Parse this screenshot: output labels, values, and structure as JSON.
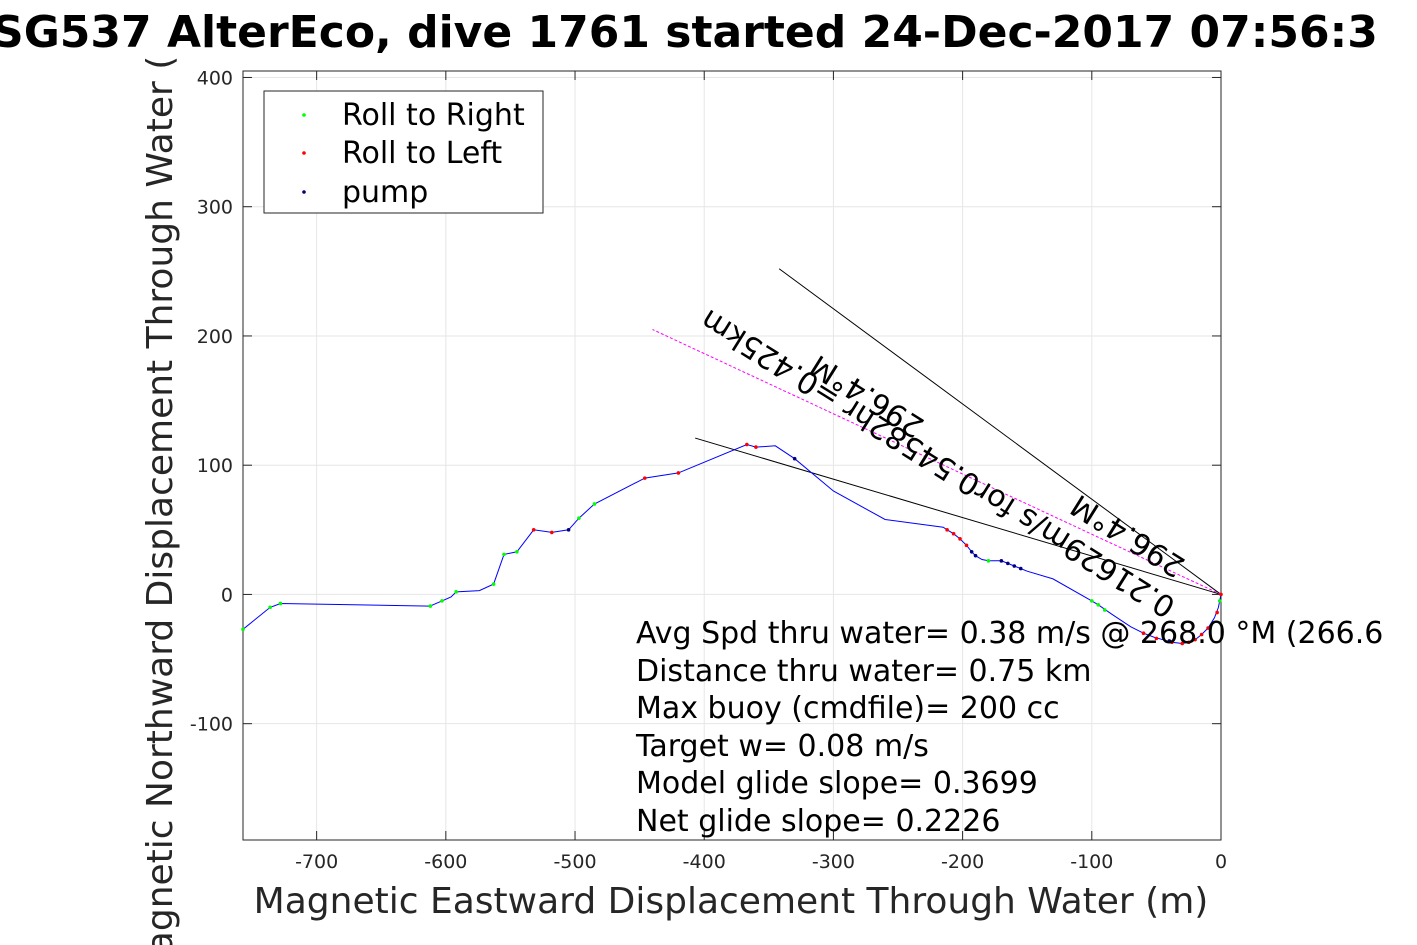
{
  "chart_data": {
    "type": "line",
    "title": "SG537 AlterEco, dive 1761 started 24-Dec-2017 07:56:3",
    "xlabel": "Magnetic Eastward Displacement Through Water (m)",
    "ylabel": "Magnetic Northward Displacement Through Water (",
    "xlim": [
      -757,
      0
    ],
    "ylim": [
      -190,
      405
    ],
    "grid": true,
    "x_ticks": [
      -700,
      -600,
      -500,
      -400,
      -300,
      -200,
      -100,
      0
    ],
    "x_tick_labels": [
      "-700",
      "-600",
      "-500",
      "-400",
      "-300",
      "-200",
      "-100",
      "0"
    ],
    "y_ticks": [
      -100,
      0,
      100,
      200,
      300,
      400
    ],
    "y_tick_labels": [
      "-100",
      "0",
      "100",
      "200",
      "300",
      "400"
    ],
    "legend": {
      "position": "top-left",
      "items": [
        {
          "label": "Roll to Right",
          "color": "#00ff00"
        },
        {
          "label": "Roll to Left",
          "color": "#ff0000"
        },
        {
          "label": "pump",
          "color": "#000080"
        }
      ]
    },
    "track": {
      "color": "#0000ff",
      "points": [
        [
          0,
          0
        ],
        [
          -1,
          -5
        ],
        [
          -2,
          -10
        ],
        [
          -5,
          -18
        ],
        [
          -10,
          -26
        ],
        [
          -15,
          -31
        ],
        [
          -20,
          -35
        ],
        [
          -25,
          -37
        ],
        [
          -30,
          -38
        ],
        [
          -38,
          -37
        ],
        [
          -45,
          -35
        ],
        [
          -52,
          -33
        ],
        [
          -60,
          -30
        ],
        [
          -70,
          -25
        ],
        [
          -85,
          -15
        ],
        [
          -95,
          -8
        ],
        [
          -100,
          -5
        ],
        [
          -130,
          12
        ],
        [
          -150,
          18
        ],
        [
          -160,
          22
        ],
        [
          -170,
          26
        ],
        [
          -180,
          26
        ],
        [
          -185,
          27
        ],
        [
          -190,
          30
        ],
        [
          -193,
          33
        ],
        [
          -197,
          38
        ],
        [
          -202,
          43
        ],
        [
          -207,
          47
        ],
        [
          -212,
          50
        ],
        [
          -215,
          52
        ],
        [
          -260,
          58
        ],
        [
          -300,
          80
        ],
        [
          -330,
          105
        ],
        [
          -345,
          115
        ],
        [
          -360,
          114
        ],
        [
          -367,
          116
        ],
        [
          -420,
          94
        ],
        [
          -446,
          90
        ],
        [
          -485,
          70
        ],
        [
          -497,
          59
        ],
        [
          -505,
          50
        ],
        [
          -518,
          48
        ],
        [
          -532,
          50
        ],
        [
          -545,
          33
        ],
        [
          -555,
          31
        ],
        [
          -563,
          8
        ],
        [
          -574,
          3
        ],
        [
          -592,
          2
        ],
        [
          -596,
          -2
        ],
        [
          -603,
          -5
        ],
        [
          -610,
          -8
        ],
        [
          -612,
          -9
        ],
        [
          -728,
          -7
        ],
        [
          -736,
          -10
        ],
        [
          -757,
          -27
        ]
      ]
    },
    "roll_right_points": [
      [
        -1,
        -5
      ],
      [
        -757,
        -27
      ],
      [
        -736,
        -10
      ],
      [
        -728,
        -7
      ],
      [
        -612,
        -9
      ],
      [
        -603,
        -5
      ],
      [
        -592,
        2
      ],
      [
        -563,
        8
      ],
      [
        -555,
        31
      ],
      [
        -545,
        33
      ],
      [
        -497,
        59
      ],
      [
        -485,
        70
      ],
      [
        -100,
        -5
      ],
      [
        -95,
        -8
      ],
      [
        -90,
        -12
      ],
      [
        -180,
        26
      ]
    ],
    "roll_left_points": [
      [
        0,
        0
      ],
      [
        -3,
        -14
      ],
      [
        -10,
        -26
      ],
      [
        -15,
        -31
      ],
      [
        -20,
        -35
      ],
      [
        -25,
        -37
      ],
      [
        -30,
        -38
      ],
      [
        -38,
        -37
      ],
      [
        -50,
        -34
      ],
      [
        -60,
        -30
      ],
      [
        -197,
        38
      ],
      [
        -202,
        43
      ],
      [
        -207,
        47
      ],
      [
        -212,
        50
      ],
      [
        -360,
        114
      ],
      [
        -367,
        116
      ],
      [
        -420,
        94
      ],
      [
        -446,
        90
      ],
      [
        -532,
        50
      ],
      [
        -518,
        48
      ]
    ],
    "pump_points": [
      [
        -40,
        -36
      ],
      [
        -170,
        26
      ],
      [
        -165,
        24
      ],
      [
        -160,
        22
      ],
      [
        -155,
        20
      ],
      [
        -190,
        30
      ],
      [
        -193,
        33
      ],
      [
        -505,
        50
      ],
      [
        -330,
        105
      ]
    ],
    "heading_lines": [
      {
        "from": [
          0,
          0
        ],
        "to": [
          -342,
          252
        ],
        "color": "#000000"
      },
      {
        "from": [
          0,
          0
        ],
        "to": [
          -407,
          121
        ],
        "color": "#000000"
      }
    ],
    "current_segment": {
      "from": [
        0,
        0
      ],
      "to": [
        -440,
        205
      ],
      "color": "#ff00ff"
    },
    "rotated_labels": [
      {
        "text": "0.21629m/s for0.54582hr =0.425km",
        "anchor": [
          -215,
          108
        ],
        "angle_deg": 212
      },
      {
        "text": "296.4°M",
        "anchor": [
          -270,
          160
        ],
        "angle_deg": 212
      },
      {
        "text": "296.4°M",
        "anchor": [
          -68,
          52
        ],
        "angle_deg": 212
      }
    ],
    "annotations": [
      "Avg Spd thru water=  0.38 m/s @ 268.0 °M (266.6",
      "Distance thru water=  0.75 km",
      "Max buoy (cmdfile)= 200 cc",
      "Target w= 0.08 m/s",
      "Model glide slope= 0.3699",
      "Net glide slope= 0.2226"
    ]
  }
}
